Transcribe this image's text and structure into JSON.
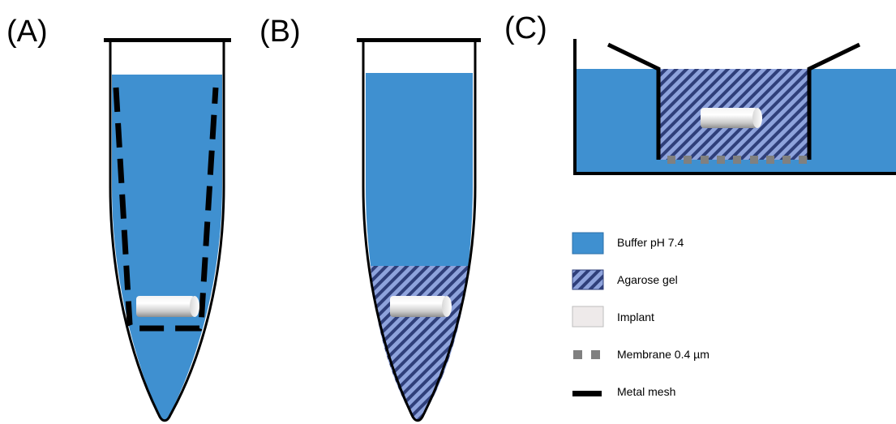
{
  "panels": {
    "a": {
      "label": "(A)"
    },
    "b": {
      "label": "(B)"
    },
    "c": {
      "label": "(C)"
    }
  },
  "legend": {
    "buffer": {
      "label": "Buffer pH 7.4",
      "color": "#3f90d0"
    },
    "agarose": {
      "label": "Agarose gel",
      "color": "#7c94d4"
    },
    "implant": {
      "label": "Implant",
      "color": "#eeeaea"
    },
    "membrane": {
      "label": "Membrane 0.4 µm",
      "color": "#808080"
    },
    "mesh": {
      "label": "Metal mesh",
      "color": "#000000"
    }
  }
}
